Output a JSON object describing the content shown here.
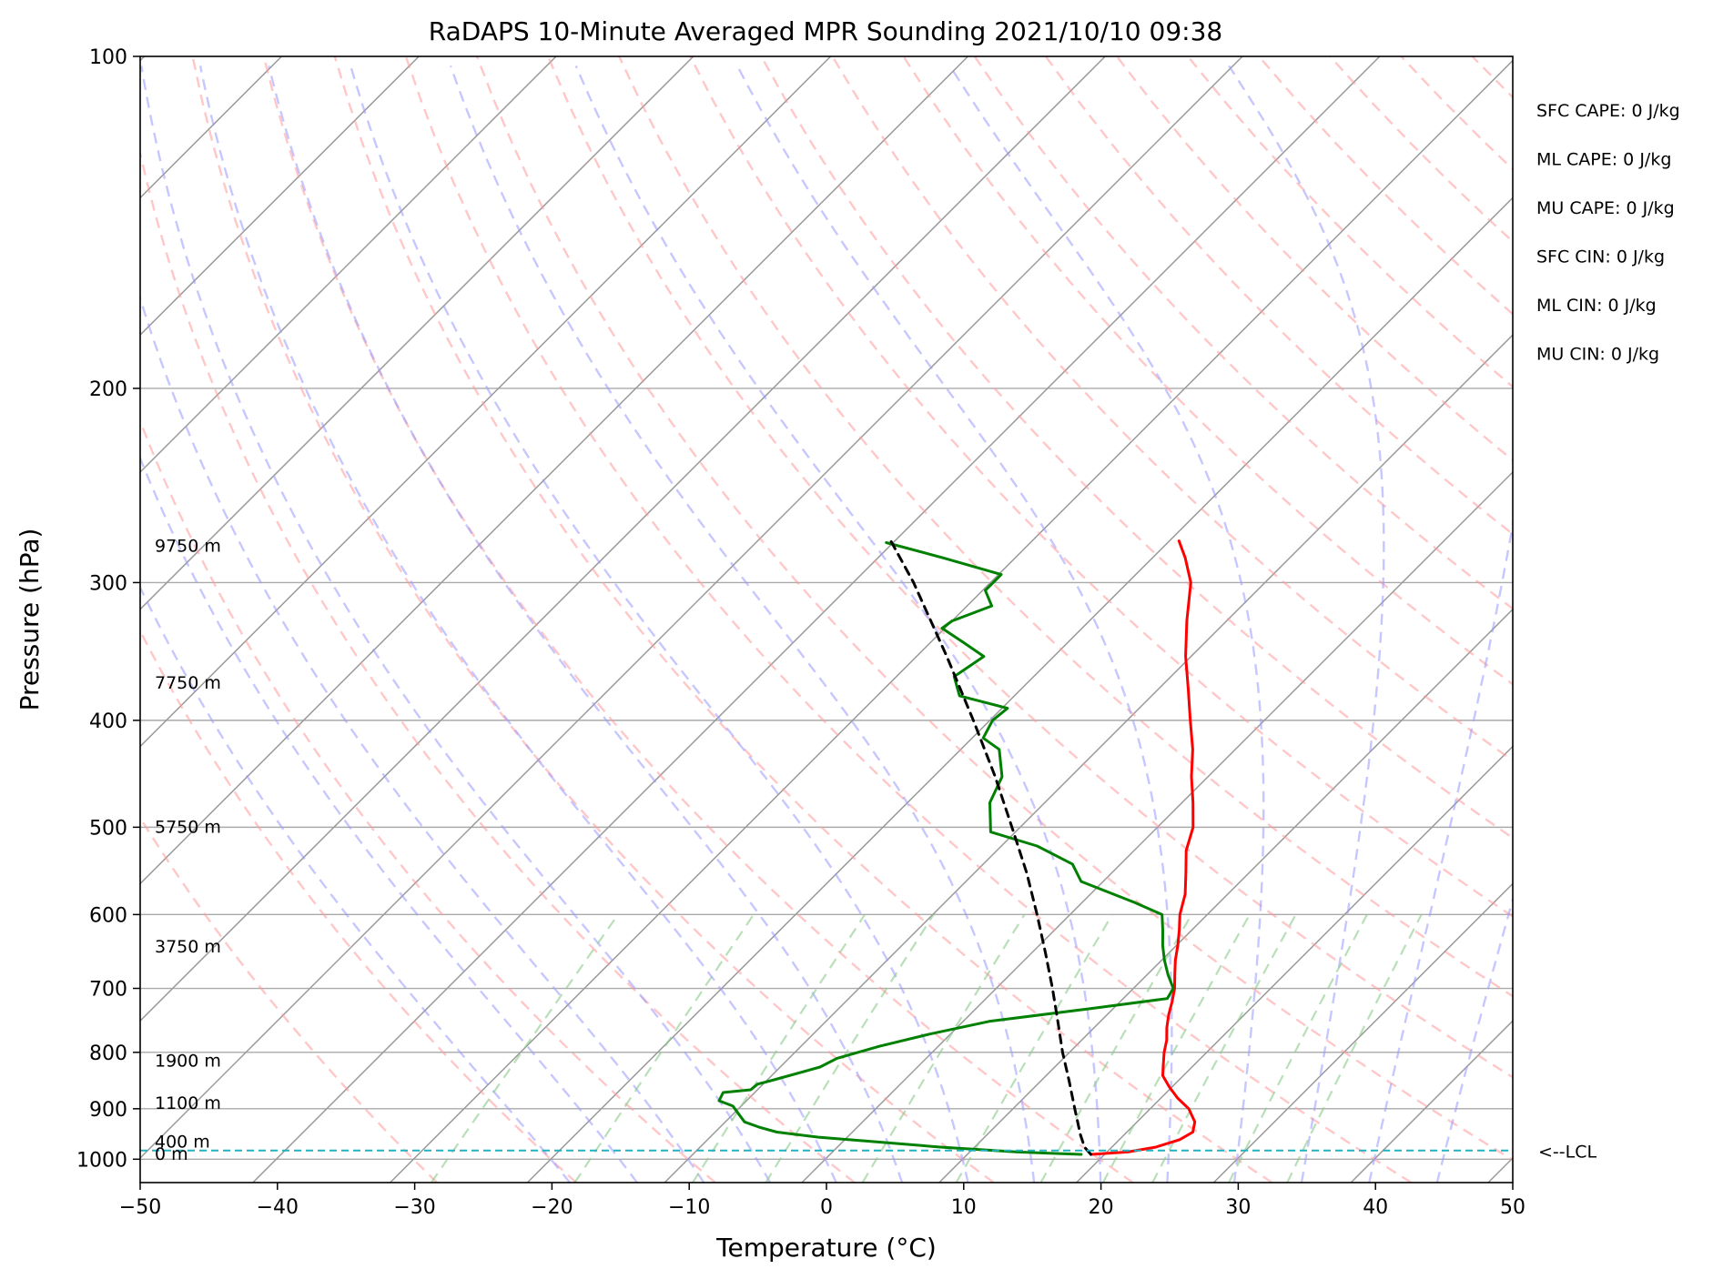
{
  "chart_data": {
    "type": "skew-t log-p sounding",
    "title": "RaDAPS 10-Minute Averaged MPR Sounding 2021/10/10 09:38",
    "xlabel": "Temperature (°C)",
    "ylabel": "Pressure (hPa)",
    "xlim": [
      -50,
      50
    ],
    "ylim": [
      1050,
      100
    ],
    "y_scale": "log",
    "x_ticks": [
      {
        "value": -50,
        "label": "−50"
      },
      {
        "value": -40,
        "label": "−40"
      },
      {
        "value": -30,
        "label": "−30"
      },
      {
        "value": -20,
        "label": "−20"
      },
      {
        "value": -10,
        "label": "−10"
      },
      {
        "value": 0,
        "label": "0"
      },
      {
        "value": 10,
        "label": "10"
      },
      {
        "value": 20,
        "label": "20"
      },
      {
        "value": 30,
        "label": "30"
      },
      {
        "value": 40,
        "label": "40"
      },
      {
        "value": 50,
        "label": "50"
      }
    ],
    "y_ticks": [
      {
        "value": 1000,
        "label": "1000"
      },
      {
        "value": 900,
        "label": "900"
      },
      {
        "value": 800,
        "label": "800"
      },
      {
        "value": 700,
        "label": "700"
      },
      {
        "value": 600,
        "label": "600"
      },
      {
        "value": 500,
        "label": "500"
      },
      {
        "value": 400,
        "label": "400"
      },
      {
        "value": 300,
        "label": "300"
      },
      {
        "value": 200,
        "label": "200"
      },
      {
        "value": 100,
        "label": "100"
      }
    ],
    "grid": true,
    "series": [
      {
        "role": "temperature",
        "color": "#ff0000",
        "points": [
          {
            "p": 990,
            "t": 19.0
          },
          {
            "p": 985,
            "t": 21.5
          },
          {
            "p": 975,
            "t": 23.2
          },
          {
            "p": 960,
            "t": 24.4
          },
          {
            "p": 945,
            "t": 24.8
          },
          {
            "p": 925,
            "t": 24.2
          },
          {
            "p": 900,
            "t": 22.8
          },
          {
            "p": 880,
            "t": 21.2
          },
          {
            "p": 860,
            "t": 19.8
          },
          {
            "p": 840,
            "t": 18.5
          },
          {
            "p": 825,
            "t": 17.9
          },
          {
            "p": 800,
            "t": 16.9
          },
          {
            "p": 780,
            "t": 16.2
          },
          {
            "p": 760,
            "t": 15.3
          },
          {
            "p": 740,
            "t": 14.5
          },
          {
            "p": 720,
            "t": 13.8
          },
          {
            "p": 700,
            "t": 13.0
          },
          {
            "p": 680,
            "t": 12.0
          },
          {
            "p": 660,
            "t": 11.0
          },
          {
            "p": 640,
            "t": 10.1
          },
          {
            "p": 620,
            "t": 9.1
          },
          {
            "p": 600,
            "t": 8.0
          },
          {
            "p": 575,
            "t": 6.9
          },
          {
            "p": 550,
            "t": 5.4
          },
          {
            "p": 525,
            "t": 3.8
          },
          {
            "p": 500,
            "t": 2.6
          },
          {
            "p": 475,
            "t": 0.8
          },
          {
            "p": 450,
            "t": -1.2
          },
          {
            "p": 425,
            "t": -3.1
          },
          {
            "p": 400,
            "t": -5.4
          },
          {
            "p": 375,
            "t": -7.8
          },
          {
            "p": 350,
            "t": -10.4
          },
          {
            "p": 325,
            "t": -12.9
          },
          {
            "p": 300,
            "t": -15.4
          },
          {
            "p": 285,
            "t": -17.6
          },
          {
            "p": 275,
            "t": -19.3
          }
        ]
      },
      {
        "role": "dewpoint",
        "color": "#008000",
        "points": [
          {
            "p": 990,
            "t": 18.3
          },
          {
            "p": 985,
            "t": 13.5
          },
          {
            "p": 975,
            "t": 7.5
          },
          {
            "p": 965,
            "t": 2.8
          },
          {
            "p": 955,
            "t": -2.1
          },
          {
            "p": 945,
            "t": -5.5
          },
          {
            "p": 935,
            "t": -7.2
          },
          {
            "p": 925,
            "t": -8.6
          },
          {
            "p": 910,
            "t": -9.6
          },
          {
            "p": 895,
            "t": -10.6
          },
          {
            "p": 885,
            "t": -12.0
          },
          {
            "p": 870,
            "t": -12.3
          },
          {
            "p": 865,
            "t": -10.5
          },
          {
            "p": 855,
            "t": -10.4
          },
          {
            "p": 848,
            "t": -9.6
          },
          {
            "p": 825,
            "t": -7.1
          },
          {
            "p": 810,
            "t": -6.5
          },
          {
            "p": 790,
            "t": -4.3
          },
          {
            "p": 770,
            "t": -1.5
          },
          {
            "p": 750,
            "t": 1.9
          },
          {
            "p": 730,
            "t": 8.4
          },
          {
            "p": 715,
            "t": 13.2
          },
          {
            "p": 700,
            "t": 12.9
          },
          {
            "p": 680,
            "t": 11.5
          },
          {
            "p": 660,
            "t": 10.2
          },
          {
            "p": 640,
            "t": 9.0
          },
          {
            "p": 620,
            "t": 7.9
          },
          {
            "p": 600,
            "t": 6.7
          },
          {
            "p": 585,
            "t": 3.8
          },
          {
            "p": 560,
            "t": -1.6
          },
          {
            "p": 540,
            "t": -3.5
          },
          {
            "p": 520,
            "t": -7.4
          },
          {
            "p": 505,
            "t": -11.8
          },
          {
            "p": 475,
            "t": -14.0
          },
          {
            "p": 450,
            "t": -15.0
          },
          {
            "p": 425,
            "t": -17.2
          },
          {
            "p": 415,
            "t": -19.2
          },
          {
            "p": 400,
            "t": -19.8
          },
          {
            "p": 390,
            "t": -19.6
          },
          {
            "p": 380,
            "t": -24.0
          },
          {
            "p": 365,
            "t": -25.8
          },
          {
            "p": 350,
            "t": -25.1
          },
          {
            "p": 340,
            "t": -27.6
          },
          {
            "p": 330,
            "t": -30.2
          },
          {
            "p": 325,
            "t": -30.0
          },
          {
            "p": 315,
            "t": -28.2
          },
          {
            "p": 305,
            "t": -29.8
          },
          {
            "p": 295,
            "t": -29.8
          },
          {
            "p": 285,
            "t": -35.2
          },
          {
            "p": 276,
            "t": -40.5
          }
        ]
      },
      {
        "role": "parcel profile",
        "color": "#000000",
        "points": [
          {
            "p": 990,
            "t": 19.0
          },
          {
            "p": 975,
            "t": 18.0
          },
          {
            "p": 950,
            "t": 16.8
          },
          {
            "p": 900,
            "t": 14.5
          },
          {
            "p": 850,
            "t": 12.1
          },
          {
            "p": 800,
            "t": 9.5
          },
          {
            "p": 750,
            "t": 6.9
          },
          {
            "p": 700,
            "t": 4.1
          },
          {
            "p": 650,
            "t": 1.0
          },
          {
            "p": 600,
            "t": -2.4
          },
          {
            "p": 550,
            "t": -6.2
          },
          {
            "p": 500,
            "t": -10.6
          },
          {
            "p": 450,
            "t": -15.5
          },
          {
            "p": 400,
            "t": -21.2
          },
          {
            "p": 350,
            "t": -27.8
          },
          {
            "p": 300,
            "t": -35.6
          },
          {
            "p": 275,
            "t": -40.3
          }
        ]
      }
    ],
    "lcl_pressure": 982,
    "lcl_label": "<--LCL",
    "height_labels": [
      {
        "p": 990,
        "label": "0 m"
      },
      {
        "p": 965,
        "label": "400 m"
      },
      {
        "p": 890,
        "label": "1100 m"
      },
      {
        "p": 815,
        "label": "1900 m"
      },
      {
        "p": 642,
        "label": "3750 m"
      },
      {
        "p": 500,
        "label": "5750 m"
      },
      {
        "p": 370,
        "label": "7750 m"
      },
      {
        "p": 278,
        "label": "9750 m"
      }
    ],
    "stats": [
      "SFC CAPE: 0 J/kg",
      "ML CAPE: 0 J/kg",
      "MU CAPE: 0 J/kg",
      "SFC CIN: 0 J/kg",
      "ML CIN: 0 J/kg",
      "MU CIN: 0 J/kg"
    ],
    "colors": {
      "dry_adiabat": "#ff9999",
      "moist_adiabat": "#9999ff",
      "mixing_ratio": "#88cc88",
      "isotherm": "#999999",
      "isobar": "#aaaaaa",
      "lcl_line": "#20b2c0"
    }
  }
}
